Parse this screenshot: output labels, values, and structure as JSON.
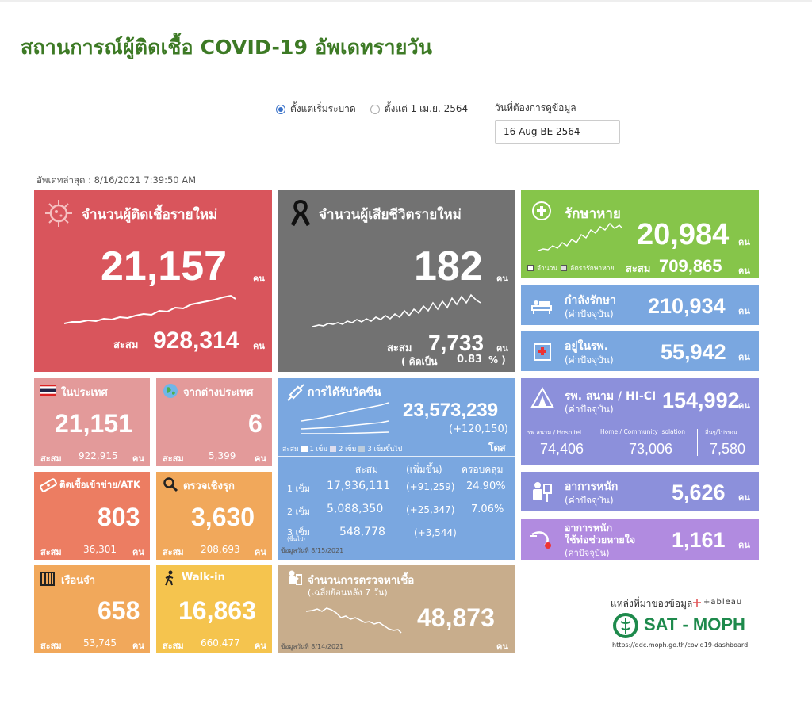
{
  "page_title": "สถานการณ์ผู้ติดเชื้อ COVID-19 อัพเดทรายวัน",
  "filters": {
    "radio_all": "ตั้งแต่เริ่มระบาด",
    "radio_apr": "ตั้งแต่ 1 เม.ย. 2564",
    "selected": "radio_all",
    "date_label": "วันที่ต้องการดูข้อมูล",
    "date_value": "16 Aug BE 2564"
  },
  "last_updated": "อัพเดทล่าสุด : 8/16/2021 7:39:50 AM",
  "new_cases": {
    "label": "จำนวนผู้ติดเชื้อรายใหม่",
    "value": "21,157",
    "unit": "คน",
    "cum_label": "สะสม",
    "cum_value": "928,314",
    "cum_unit": "คน"
  },
  "new_deaths": {
    "label": "จำนวนผู้เสียชีวิตรายใหม่",
    "value": "182",
    "unit": "คน",
    "cum_label": "สะสม",
    "cum_value": "7,733",
    "cum_unit": "คน",
    "rate_label": "( คิดเป็น",
    "rate_value": "0.83",
    "rate_unit": "% )"
  },
  "recovered": {
    "label": "รักษาหาย",
    "value": "20,984",
    "unit": "คน",
    "legend_count": "จำนวน",
    "legend_rate": "อัตรารักษาหาย",
    "cum_label": "สะสม",
    "cum_value": "709,865",
    "cum_unit": "คน"
  },
  "in_treatment": {
    "label": "กำลังรักษา",
    "sub": "(ค่าปัจจุบัน)",
    "value": "210,934",
    "unit": "คน"
  },
  "in_hospital": {
    "label": "อยู่ในรพ.",
    "sub": "(ค่าปัจจุบัน)",
    "value": "55,942",
    "unit": "คน"
  },
  "field_hospital": {
    "label": "รพ. สนาม / HI-CI",
    "sub": "(ค่าปัจจุบัน)",
    "value": "154,992",
    "unit": "คน",
    "col1_label": "รพ.สนาม / Hospitel",
    "col1_value": "74,406",
    "col2_label": "Home / Community Isolation",
    "col2_value": "73,006",
    "col3_label": "อื่นๆ/ไปรษณ",
    "col3_value": "7,580"
  },
  "severe": {
    "label": "อาการหนัก",
    "sub": "(ค่าปัจจุบัน)",
    "value": "5,626",
    "unit": "คน"
  },
  "ventilator": {
    "label1": "อาการหนัก",
    "label2": "ใช้ท่อช่วยหายใจ",
    "sub": "(ค่าปัจจุบัน)",
    "value": "1,161",
    "unit": "คน"
  },
  "domestic": {
    "label": "ในประเทศ",
    "value": "21,151",
    "cum_label": "สะสม",
    "cum_value": "922,915",
    "cum_unit": "คน"
  },
  "abroad": {
    "label": "จากต่างประเทศ",
    "value": "6",
    "cum_label": "สะสม",
    "cum_value": "5,399",
    "cum_unit": "คน"
  },
  "prison_atk": {
    "label": "ติดเชื้อเข้าข่าย/ATK",
    "value": "803",
    "cum_label": "สะสม",
    "cum_value": "36,301",
    "cum_unit": "คน"
  },
  "active_search": {
    "label": "ตรวจเชิงรุก",
    "value": "3,630",
    "cum_label": "สะสม",
    "cum_value": "208,693",
    "cum_unit": "คน"
  },
  "prison": {
    "label": "เรือนจำ",
    "value": "658",
    "cum_label": "สะสม",
    "cum_value": "53,745",
    "cum_unit": "คน"
  },
  "walkin": {
    "label": "Walk-in",
    "value": "16,863",
    "cum_label": "สะสม",
    "cum_value": "660,477",
    "cum_unit": "คน"
  },
  "vaccine": {
    "label": "การได้รับวัคซีน",
    "value": "23,573,239",
    "delta": "(+120,150)",
    "unit": "โดส",
    "legend_cum": "สะสม",
    "legend_1": "1 เข็ม",
    "legend_2": "2 เข็ม",
    "legend_3": "3 เข็มขึ้นไป",
    "headers": [
      "สะสม",
      "(เพิ่มขึ้น)",
      "ครอบคลุม"
    ],
    "rows": [
      {
        "dose": "1 เข็ม",
        "cum": "17,936,111",
        "inc": "(+91,259)",
        "cover": "24.90%"
      },
      {
        "dose": "2 เข็ม",
        "cum": "5,088,350",
        "inc": "(+25,347)",
        "cover": "7.06%"
      },
      {
        "dose": "3 เข็ม",
        "dose_sub": "(ขึ้นไป)",
        "cum": "548,778",
        "inc": "(+3,544)",
        "cover": ""
      }
    ],
    "note": "ข้อมูลวันที่ 8/15/2021"
  },
  "tests": {
    "label": "จำนวนการตรวจหาเชื้อ",
    "sub": "(เฉลี่ยย้อนหลัง 7 วัน)",
    "value": "48,873",
    "unit": "คน",
    "note": "ข้อมูลวันที่ 8/14/2021"
  },
  "source": {
    "label": "แหล่งที่มาของข้อมูล",
    "tableau": "+ableau",
    "org": "SAT - MOPH",
    "url": "https://ddc.moph.go.th/covid19-dashboard"
  },
  "colors": {
    "red": "#d9555c",
    "gray": "#727272",
    "green": "#86c54a",
    "blue": "#7aa7e0",
    "purple": "#8c90db",
    "violet": "#b18be0",
    "orange": "#f1a85b",
    "yellow": "#f5c44e",
    "tan": "#c8ad8c",
    "pink": "#e39a9a",
    "title": "#3d7a25"
  }
}
